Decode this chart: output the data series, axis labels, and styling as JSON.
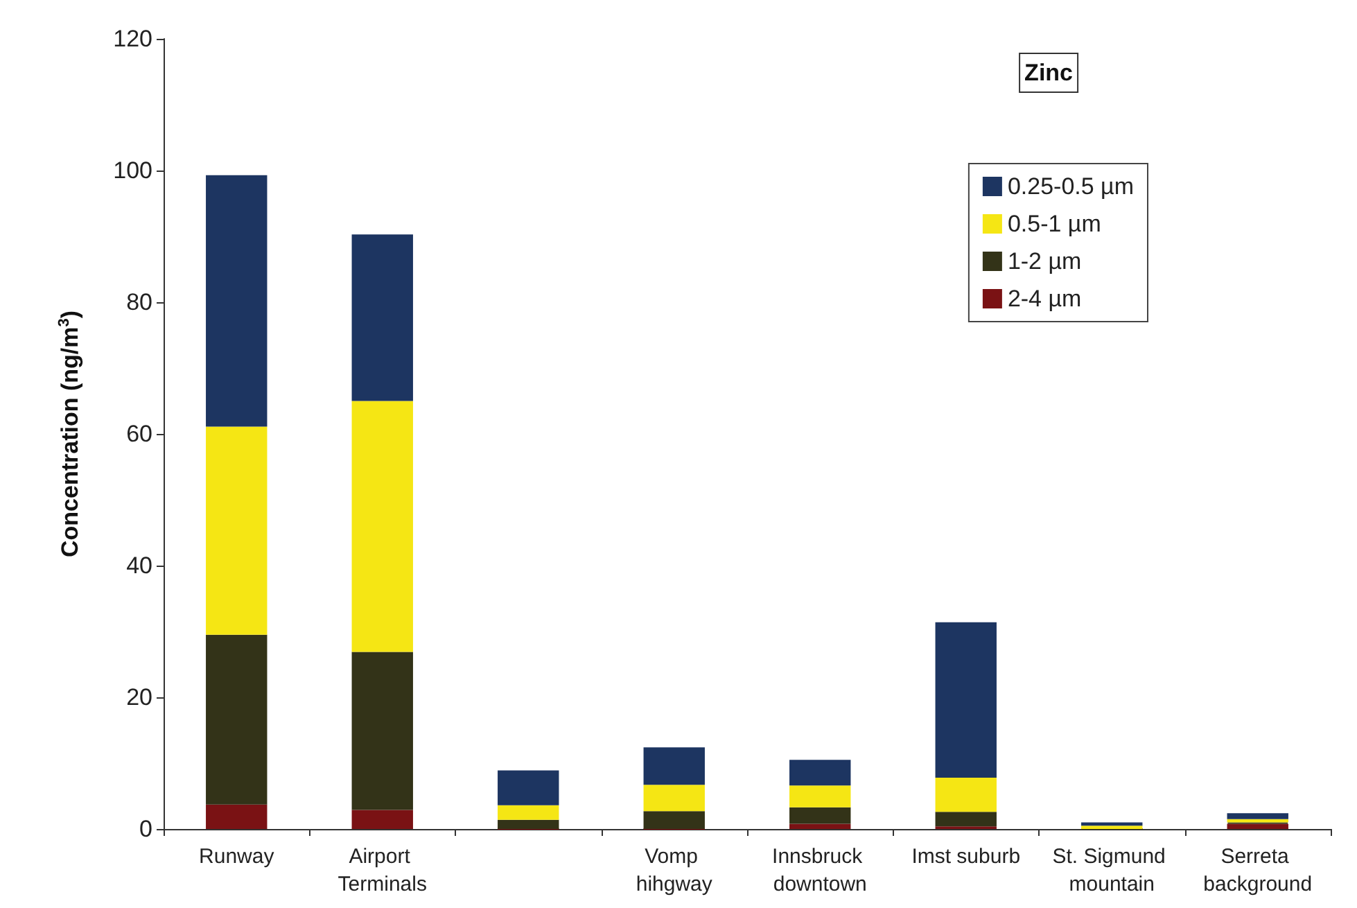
{
  "chart_data": {
    "type": "bar",
    "stacked": true,
    "title": "Zinc",
    "ylabel": "Concentration (ng/m$^{3}$)",
    "categories": [
      "Runway",
      "Airport Terminals",
      null,
      "Vomp hihgway",
      "Innsbruck downtown",
      "Imst suburb",
      "St. Sigmund mountain",
      "Serreta background"
    ],
    "series": [
      {
        "name": "2-4 µm",
        "color": "#7a1214",
        "values": [
          3.7,
          2.9,
          0,
          0,
          0.8,
          0.4,
          0,
          0.8
        ]
      },
      {
        "name": "1-2 µm",
        "color": "#333318",
        "values": [
          25.8,
          24.0,
          1.4,
          2.7,
          2.5,
          2.2,
          0,
          0.2
        ]
      },
      {
        "name": "0.5-1 µm",
        "color": "#f5e614",
        "values": [
          31.6,
          38.1,
          2.2,
          4.0,
          3.3,
          5.2,
          0.5,
          0.5
        ]
      },
      {
        "name": "0.25-0.5 µm",
        "color": "#1d3561",
        "values": [
          38.2,
          25.3,
          5.3,
          5.7,
          3.9,
          23.6,
          0.5,
          0.9
        ]
      }
    ],
    "ylim": [
      0,
      120
    ],
    "yticks": [
      0,
      20,
      40,
      60,
      80,
      100,
      120
    ],
    "grid": false,
    "legend": "top right"
  }
}
